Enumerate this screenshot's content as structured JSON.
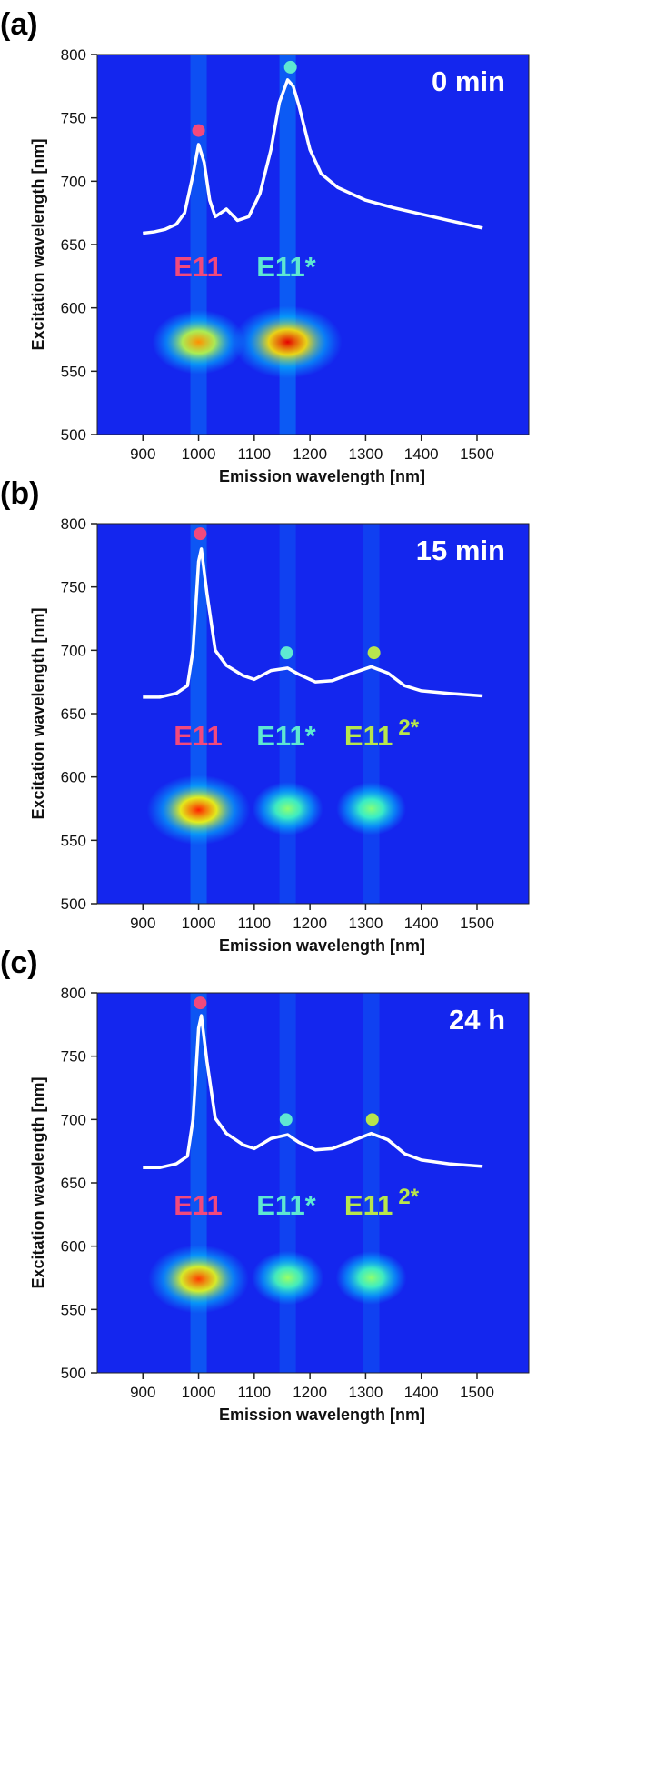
{
  "chart_data": [
    {
      "type": "heatmap",
      "panel": "(a)",
      "annotation": "0 min",
      "background": "#1426ee",
      "xlabel": "Emission wavelength [nm]",
      "ylabel": "Excitation wavelength [nm]",
      "xlim": [
        818,
        1593
      ],
      "ylim": [
        500,
        800
      ],
      "xticks": [
        900,
        1000,
        1100,
        1200,
        1300,
        1400,
        1500
      ],
      "yticks": [
        500,
        550,
        600,
        650,
        700,
        750,
        800
      ],
      "line": {
        "color": "#ffffff",
        "x": [
          900,
          920,
          940,
          960,
          975,
          990,
          1000,
          1010,
          1020,
          1030,
          1050,
          1070,
          1090,
          1110,
          1130,
          1145,
          1160,
          1170,
          1180,
          1200,
          1220,
          1250,
          1300,
          1350,
          1400,
          1450,
          1510
        ],
        "y": [
          659,
          660,
          662,
          666,
          675,
          705,
          729,
          715,
          685,
          672,
          678,
          669,
          672,
          690,
          725,
          762,
          780,
          775,
          760,
          725,
          706,
          695,
          685,
          679,
          674,
          669,
          663
        ]
      },
      "markers": {
        "x": [
          1000,
          1165
        ],
        "y": [
          740,
          790
        ],
        "colors": [
          "#f2497c",
          "#5ee8d2"
        ]
      },
      "labels": [
        {
          "text": "E11",
          "color": "#f2497c"
        },
        {
          "text": "E11*",
          "color": "#5ee8d2"
        }
      ],
      "spots": {
        "x": [
          1000,
          1160
        ],
        "y": [
          573,
          573
        ],
        "intensity": [
          0.7,
          1.0
        ]
      }
    },
    {
      "type": "heatmap",
      "panel": "(b)",
      "annotation": "15 min",
      "background": "#1426ee",
      "xlabel": "Emission wavelength [nm]",
      "ylabel": "Excitation wavelength [nm]",
      "xlim": [
        818,
        1593
      ],
      "ylim": [
        500,
        800
      ],
      "xticks": [
        900,
        1000,
        1100,
        1200,
        1300,
        1400,
        1500
      ],
      "yticks": [
        500,
        550,
        600,
        650,
        700,
        750,
        800
      ],
      "line": {
        "color": "#ffffff",
        "x": [
          900,
          930,
          960,
          980,
          990,
          1000,
          1005,
          1015,
          1030,
          1050,
          1080,
          1100,
          1130,
          1160,
          1180,
          1210,
          1240,
          1270,
          1310,
          1340,
          1370,
          1400,
          1450,
          1510
        ],
        "y": [
          663,
          663,
          666,
          672,
          700,
          770,
          780,
          745,
          700,
          688,
          680,
          677,
          684,
          686,
          681,
          675,
          676,
          681,
          687,
          682,
          672,
          668,
          666,
          664
        ]
      },
      "markers": {
        "x": [
          1003,
          1158,
          1315
        ],
        "y": [
          792,
          698,
          698
        ],
        "colors": [
          "#f2497c",
          "#5ee8d2",
          "#b8e64c"
        ]
      },
      "labels": [
        {
          "text": "E11",
          "color": "#f2497c"
        },
        {
          "text": "E11*",
          "color": "#5ee8d2"
        },
        {
          "text": "E11",
          "sup": "2*",
          "color": "#b8e64c"
        }
      ],
      "spots": {
        "x": [
          1000,
          1160,
          1310
        ],
        "y": [
          574,
          575,
          575
        ],
        "intensity": [
          0.9,
          0.3,
          0.28
        ]
      }
    },
    {
      "type": "heatmap",
      "panel": "(c)",
      "annotation": "24 h",
      "background": "#1426ee",
      "xlabel": "Emission wavelength [nm]",
      "ylabel": "Excitation wavelength [nm]",
      "xlim": [
        818,
        1593
      ],
      "ylim": [
        500,
        800
      ],
      "xticks": [
        900,
        1000,
        1100,
        1200,
        1300,
        1400,
        1500
      ],
      "yticks": [
        500,
        550,
        600,
        650,
        700,
        750,
        800
      ],
      "line": {
        "color": "#ffffff",
        "x": [
          900,
          930,
          960,
          980,
          990,
          1000,
          1005,
          1015,
          1030,
          1050,
          1080,
          1100,
          1130,
          1160,
          1180,
          1210,
          1240,
          1270,
          1310,
          1340,
          1370,
          1400,
          1450,
          1510
        ],
        "y": [
          662,
          662,
          665,
          671,
          700,
          772,
          782,
          746,
          701,
          689,
          680,
          677,
          685,
          688,
          682,
          676,
          677,
          682,
          689,
          684,
          673,
          668,
          665,
          663
        ]
      },
      "markers": {
        "x": [
          1003,
          1157,
          1312
        ],
        "y": [
          792,
          700,
          700
        ],
        "colors": [
          "#f2497c",
          "#5ee8d2",
          "#b8e64c"
        ]
      },
      "labels": [
        {
          "text": "E11",
          "color": "#f2497c"
        },
        {
          "text": "E11*",
          "color": "#5ee8d2"
        },
        {
          "text": "E11",
          "sup": "2*",
          "color": "#b8e64c"
        }
      ],
      "spots": {
        "x": [
          1000,
          1160,
          1310
        ],
        "y": [
          574,
          575,
          575
        ],
        "intensity": [
          0.85,
          0.32,
          0.3
        ]
      }
    }
  ]
}
